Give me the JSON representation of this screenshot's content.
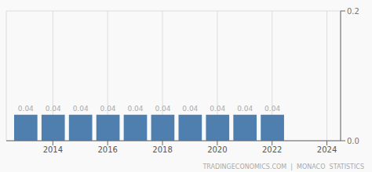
{
  "chart_data": {
    "type": "bar",
    "x": [
      2013,
      2014,
      2015,
      2016,
      2017,
      2018,
      2019,
      2020,
      2021,
      2022
    ],
    "values": [
      0.04,
      0.04,
      0.04,
      0.04,
      0.04,
      0.04,
      0.04,
      0.04,
      0.04,
      0.04
    ],
    "color": "#4f7faf",
    "xlim": [
      2012.3,
      2024.5
    ],
    "xticks": [
      2014,
      2016,
      2018,
      2020,
      2022,
      2024
    ],
    "ylim": [
      0,
      0.2
    ],
    "yticks": [
      {
        "value": 0,
        "label": "0.0"
      },
      0.2
    ],
    "grid": true,
    "data_labels": true,
    "annotations": [
      "TRADINGECONOMICS.COM  |  MONACO  STATISTICS"
    ]
  }
}
